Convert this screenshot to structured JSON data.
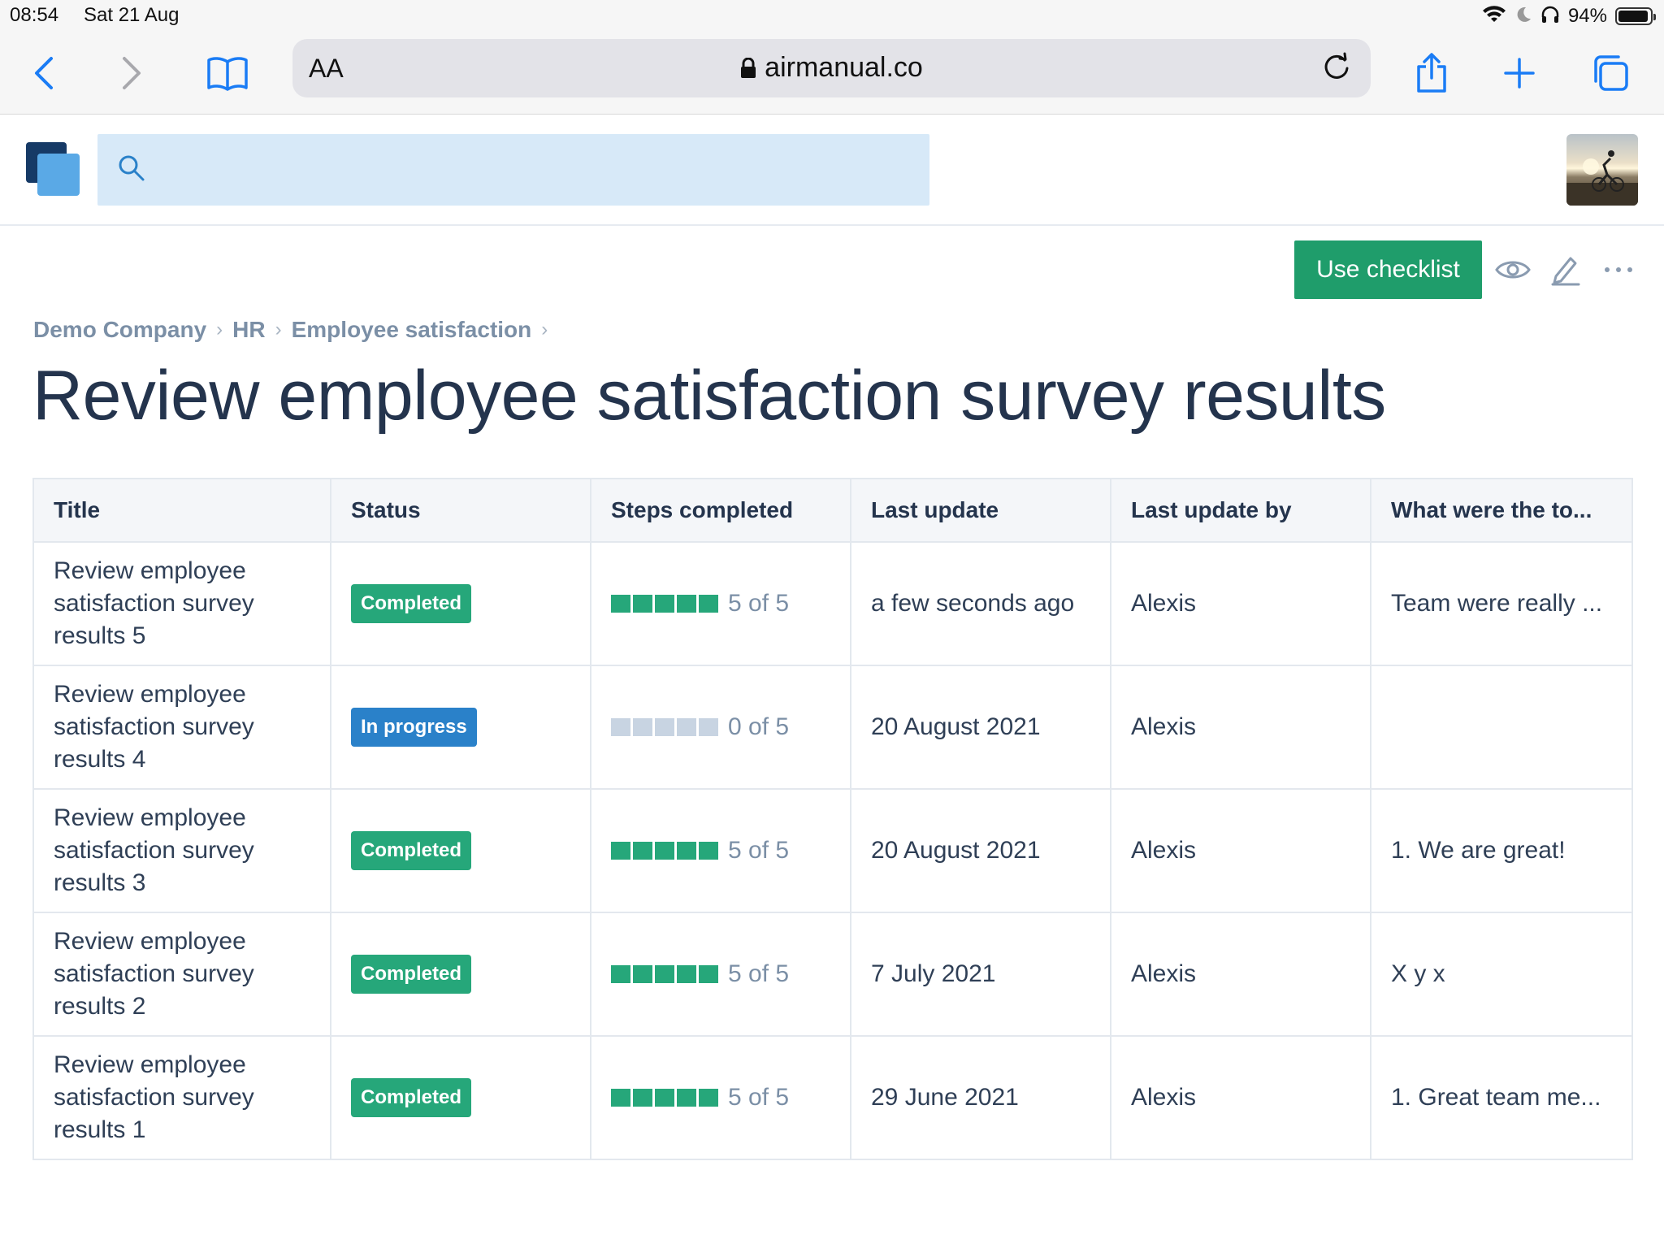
{
  "status_bar": {
    "time": "08:54",
    "date": "Sat 21 Aug",
    "battery": "94%",
    "battery_level": 0.94
  },
  "browser": {
    "text_size_label": "AA",
    "url": "airmanual.co"
  },
  "icons": {
    "back": "chevron-left-icon",
    "forward": "chevron-right-icon",
    "bookmarks": "book-icon",
    "share": "share-icon",
    "new_tab": "plus-icon",
    "tabs": "tabs-icon",
    "search": "search-icon",
    "view": "eye-icon",
    "edit": "pencil-icon",
    "more": "more-icon"
  },
  "colors": {
    "primary_green": "#1f9d6b",
    "completed": "#26a77a",
    "in_progress": "#2a81c9",
    "search_bg": "#d7e9f8"
  },
  "search": {
    "placeholder": ""
  },
  "actions": {
    "use_checklist": "Use checklist"
  },
  "breadcrumb": {
    "company": "Demo Company",
    "section": "HR",
    "category": "Employee satisfaction"
  },
  "page_title": "Review employee satisfaction survey results",
  "table": {
    "headers": {
      "title": "Title",
      "status": "Status",
      "steps": "Steps completed",
      "last_update": "Last update",
      "last_update_by": "Last update by",
      "what": "What were the to..."
    },
    "rows": [
      {
        "title": "Review employee satisfaction survey results 5",
        "status": "Completed",
        "steps_done": 5,
        "steps_total": 5,
        "steps_label": "5 of 5",
        "last_update": "a few seconds ago",
        "last_update_by": "Alexis",
        "what": "Team were really ..."
      },
      {
        "title": "Review employee satisfaction survey results 4",
        "status": "In progress",
        "steps_done": 0,
        "steps_total": 5,
        "steps_label": "0 of 5",
        "last_update": "20 August 2021",
        "last_update_by": "Alexis",
        "what": ""
      },
      {
        "title": "Review employee satisfaction survey results 3",
        "status": "Completed",
        "steps_done": 5,
        "steps_total": 5,
        "steps_label": "5 of 5",
        "last_update": "20 August 2021",
        "last_update_by": "Alexis",
        "what": "1. We are great!"
      },
      {
        "title": "Review employee satisfaction survey results 2",
        "status": "Completed",
        "steps_done": 5,
        "steps_total": 5,
        "steps_label": "5 of 5",
        "last_update": "7 July 2021",
        "last_update_by": "Alexis",
        "what": "X y x"
      },
      {
        "title": "Review employee satisfaction survey results 1",
        "status": "Completed",
        "steps_done": 5,
        "steps_total": 5,
        "steps_label": "5 of 5",
        "last_update": "29 June 2021",
        "last_update_by": "Alexis",
        "what": "1. Great team me..."
      }
    ]
  }
}
